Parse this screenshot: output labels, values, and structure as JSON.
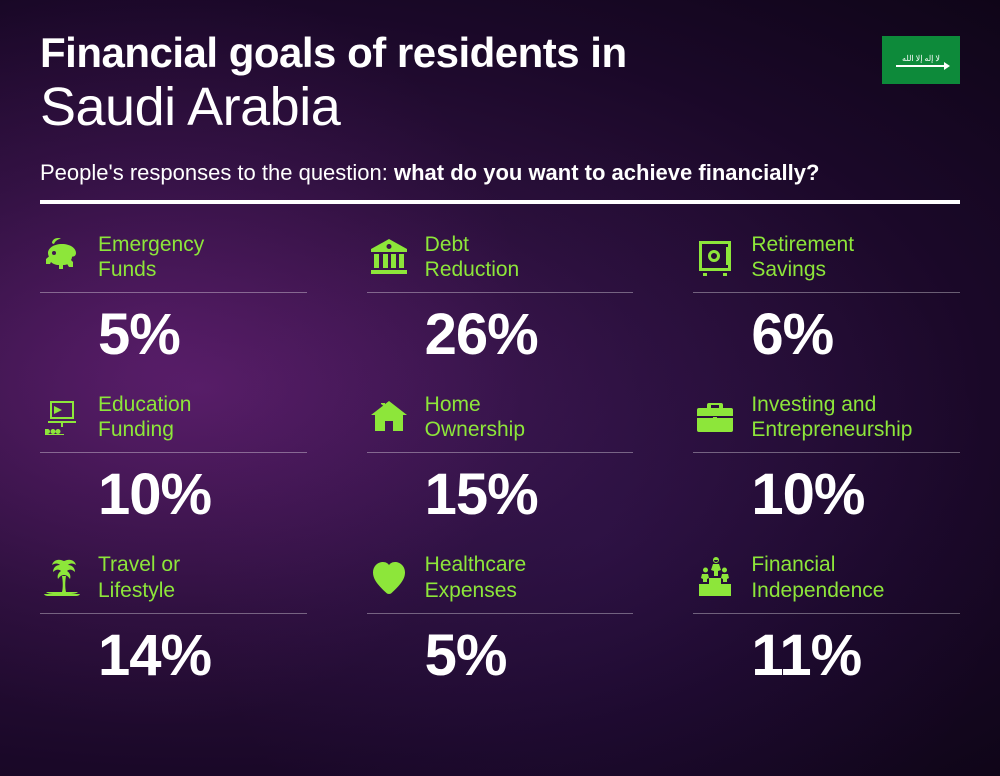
{
  "header": {
    "title_line1": "Financial goals of residents in",
    "title_line2": "Saudi Arabia",
    "subtitle_prefix": "People's responses to the question: ",
    "subtitle_bold": "what do you want to achieve financially?"
  },
  "colors": {
    "accent": "#8de63a",
    "text": "#ffffff",
    "flag_bg": "#0d8a3a",
    "divider": "#ffffff"
  },
  "typography": {
    "title_bold_size": 42,
    "title_light_size": 54,
    "subtitle_size": 22,
    "label_size": 21,
    "value_size": 58
  },
  "items": [
    {
      "icon": "piggy-bank",
      "label": "Emergency\nFunds",
      "value": "5%"
    },
    {
      "icon": "bank",
      "label": "Debt\nReduction",
      "value": "26%"
    },
    {
      "icon": "safe",
      "label": "Retirement\nSavings",
      "value": "6%"
    },
    {
      "icon": "presentation",
      "label": "Education\nFunding",
      "value": "10%"
    },
    {
      "icon": "house",
      "label": "Home\nOwnership",
      "value": "15%"
    },
    {
      "icon": "briefcase",
      "label": "Investing and\nEntrepreneurship",
      "value": "10%"
    },
    {
      "icon": "palm",
      "label": "Travel or\nLifestyle",
      "value": "14%"
    },
    {
      "icon": "heart-pulse",
      "label": "Healthcare\nExpenses",
      "value": "5%"
    },
    {
      "icon": "podium",
      "label": "Financial\nIndependence",
      "value": "11%"
    }
  ]
}
